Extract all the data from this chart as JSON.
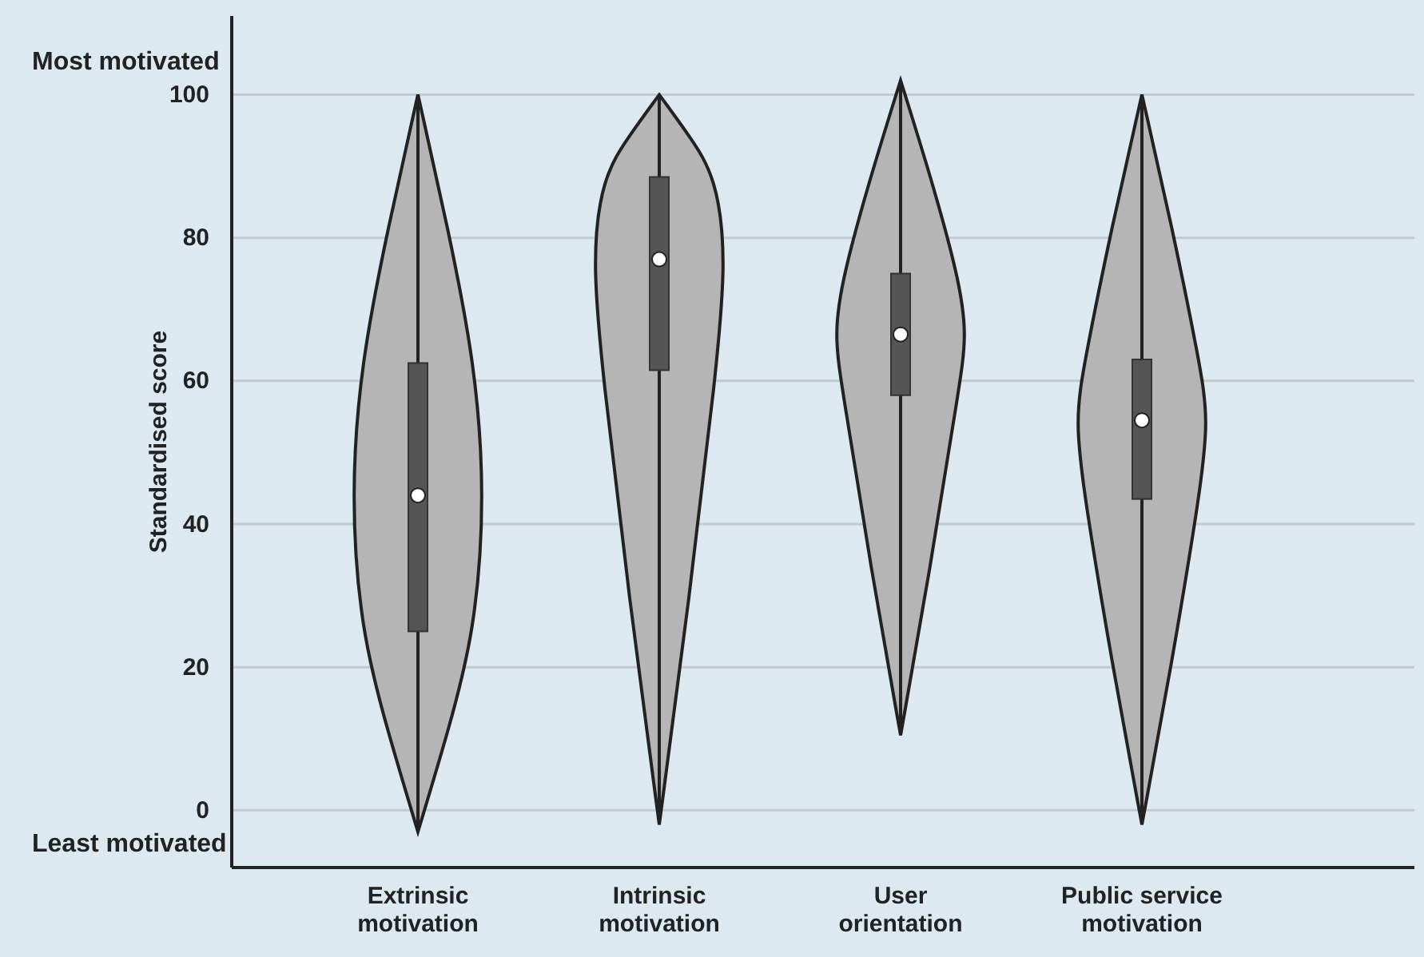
{
  "chart_data": {
    "type": "box",
    "ylabel": "Standardised score",
    "categories": [
      "Extrinsic motivation",
      "Intrinsic motivation",
      "User orientation",
      "Public service motivation"
    ],
    "boxes": [
      {
        "low": -3,
        "q1": 25,
        "median": 44,
        "q3": 62.5,
        "high": 100
      },
      {
        "low": -2,
        "q1": 61.5,
        "median": 77,
        "q3": 88.5,
        "high": 100
      },
      {
        "low": 10.5,
        "q1": 58,
        "median": 66.5,
        "q3": 75,
        "high": 102
      },
      {
        "low": -2,
        "q1": 43.5,
        "median": 54.5,
        "q3": 63,
        "high": 100
      }
    ],
    "color": "#555555",
    "ylim": [
      -8,
      111
    ],
    "yticks": [
      0,
      20,
      40,
      60,
      80,
      100
    ],
    "grid": "y",
    "annotations": [
      "Most motivated",
      "Least motivated"
    ]
  }
}
